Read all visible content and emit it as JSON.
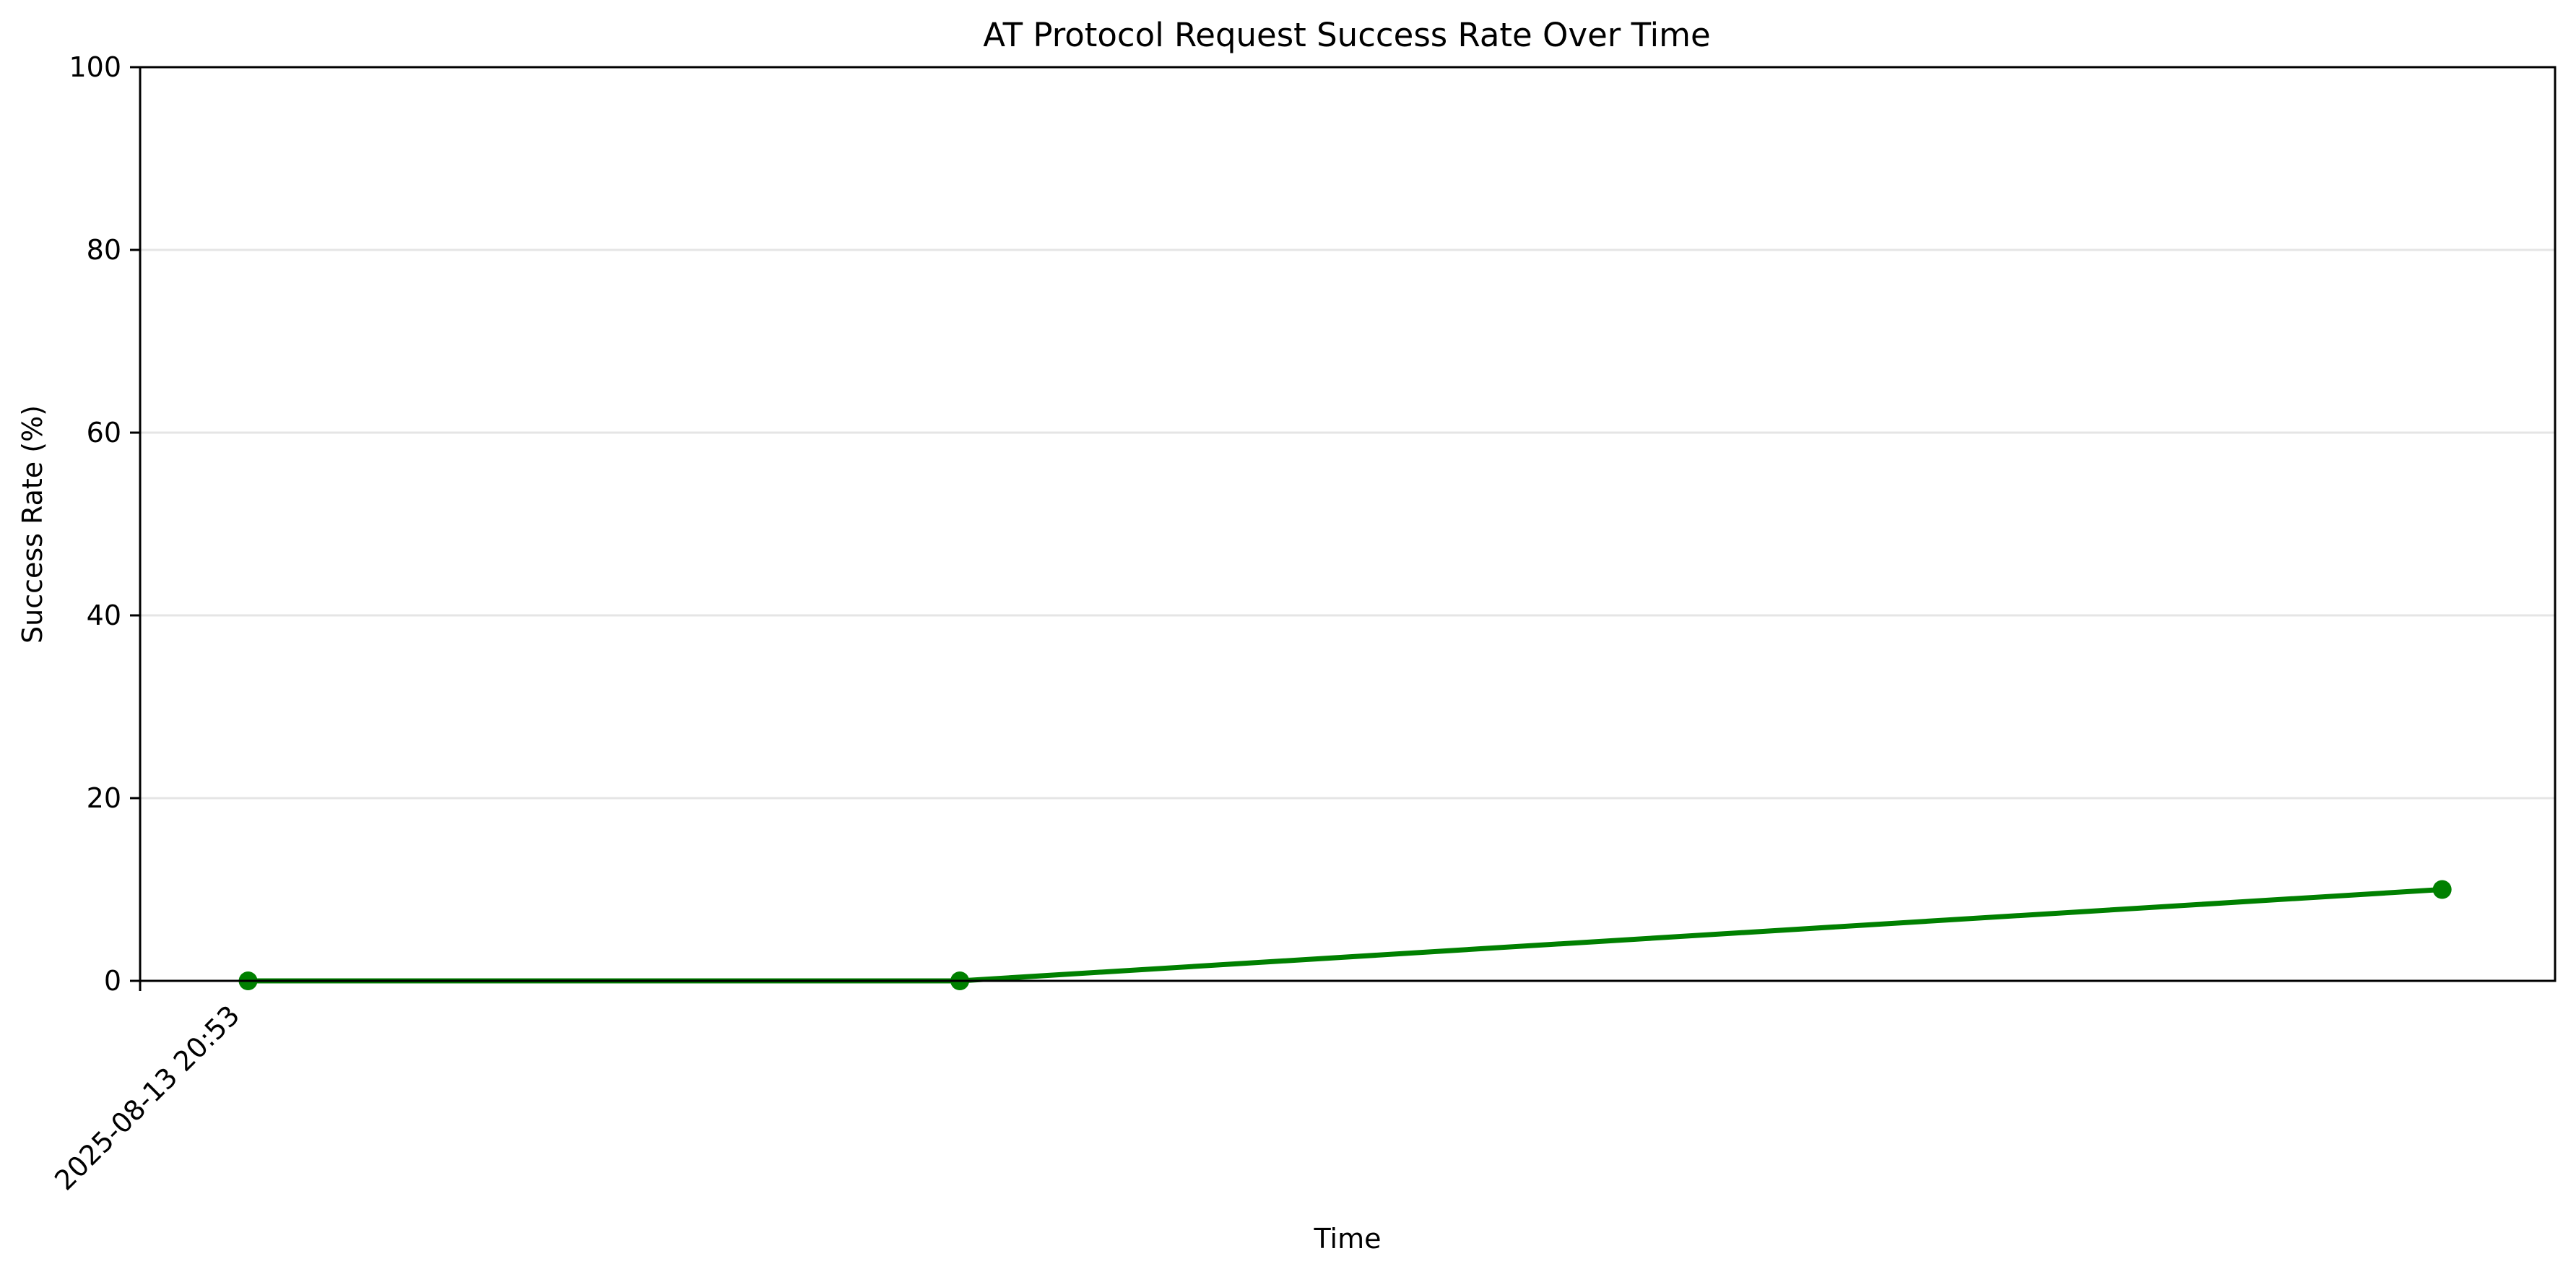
{
  "chart_data": {
    "type": "line",
    "title": "AT Protocol Request Success Rate Over Time",
    "xlabel": "Time",
    "ylabel": "Success Rate (%)",
    "ylim": [
      0,
      100
    ],
    "x_tick_labels": [
      "2025-08-13 20:53"
    ],
    "y_tick_labels": [
      "0",
      "20",
      "40",
      "60",
      "80",
      "100"
    ],
    "grid": "horizontal",
    "series": [
      {
        "color": "#008000",
        "marker": "circle",
        "points": [
          {
            "x": "2025-08-13 20:53",
            "y": 0
          },
          {
            "x": "2025-08-13 20:53",
            "y": 0
          },
          {
            "x": "2025-08-13 20:53",
            "y": 10
          }
        ]
      }
    ]
  }
}
